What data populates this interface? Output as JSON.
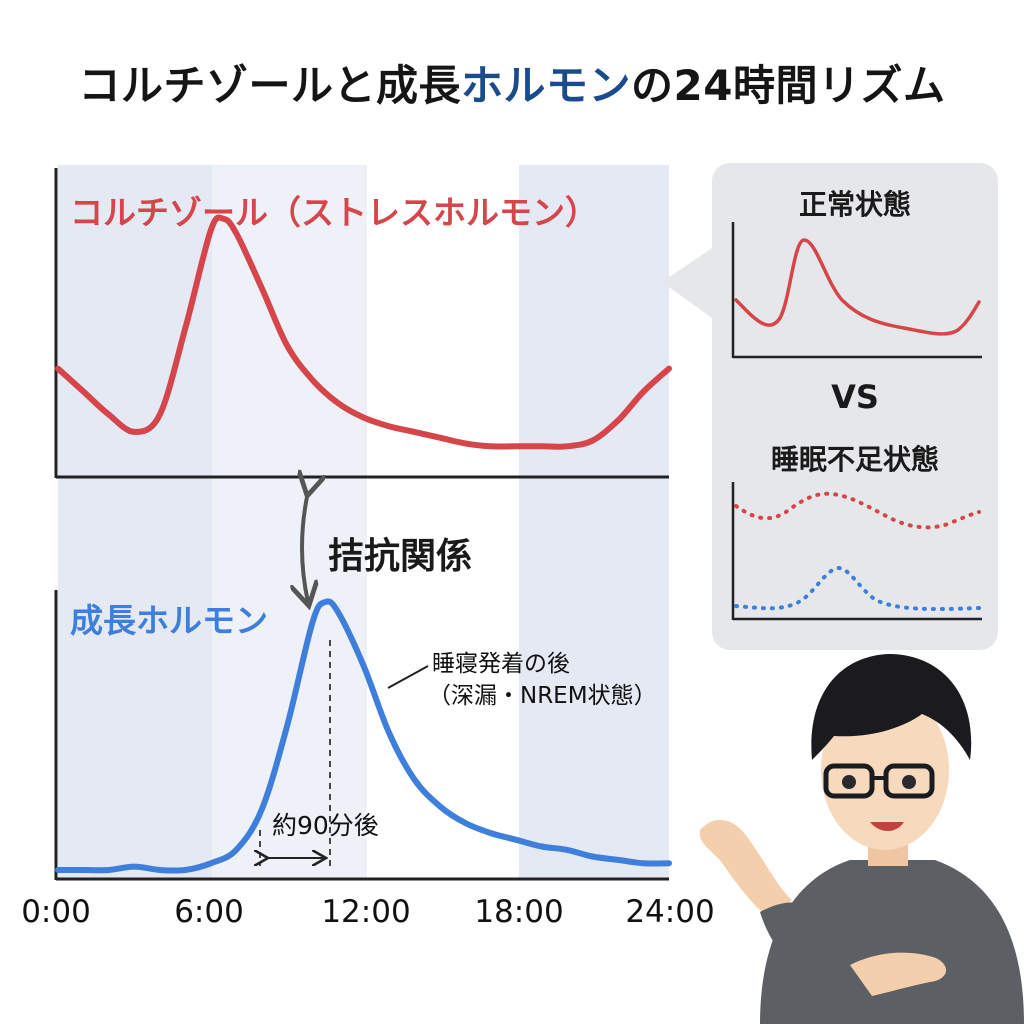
{
  "title": {
    "part1": "コルチゾールと成長",
    "accent": "ホルモン",
    "part2": "の24時間リズム"
  },
  "colors": {
    "cortisol": "#d6454a",
    "growth": "#3e7fdc",
    "band": "#e4e9f3",
    "panel_bg": "#e6e7ea"
  },
  "chart_data": [
    {
      "type": "line",
      "series": [
        {
          "name": "コルチゾール（ストレスホルモン）",
          "x": [
            0,
            1,
            2,
            3,
            4,
            5,
            6,
            6.5,
            7,
            8,
            9,
            10,
            11,
            12,
            13,
            14,
            15,
            16,
            17,
            18,
            19,
            20,
            21,
            22,
            23,
            24
          ],
          "y": [
            38,
            30,
            22,
            16,
            22,
            52,
            86,
            90,
            85,
            66,
            46,
            34,
            26,
            21,
            18,
            16,
            14,
            12,
            11,
            11,
            11,
            11,
            13,
            20,
            30,
            38
          ]
        }
      ],
      "xlim": [
        0,
        24
      ],
      "ylim": [
        0,
        100
      ]
    },
    {
      "type": "line",
      "series": [
        {
          "name": "成長ホルモン",
          "x": [
            0,
            1,
            2,
            3,
            4,
            5,
            6,
            7,
            8,
            9,
            10,
            10.5,
            11,
            12,
            13,
            14,
            15,
            16,
            17,
            18,
            19,
            20,
            21,
            22,
            23,
            24
          ],
          "y": [
            3,
            3,
            3,
            4,
            3,
            3,
            5,
            9,
            21,
            46,
            77,
            83,
            80,
            64,
            44,
            30,
            22,
            17,
            14,
            12,
            10,
            9,
            7,
            6,
            5,
            5
          ]
        }
      ],
      "xlim": [
        0,
        24
      ],
      "ylim": [
        0,
        100
      ],
      "xticks": [
        "0:00",
        "6:00",
        "12:00",
        "18:00",
        "24:00"
      ]
    }
  ],
  "labels": {
    "cortisol": "コルチゾール（ストレスホルモン）",
    "growth": "成長ホルモン",
    "relation": "拮抗関係",
    "annotation_line1": "睡寝発着の後",
    "annotation_line2": "（深漏・NREM状態）",
    "delay": "約90分後"
  },
  "comparison": {
    "normal_title": "正常状態",
    "vs": "VS",
    "deprived_title": "睡眠不足状態"
  }
}
